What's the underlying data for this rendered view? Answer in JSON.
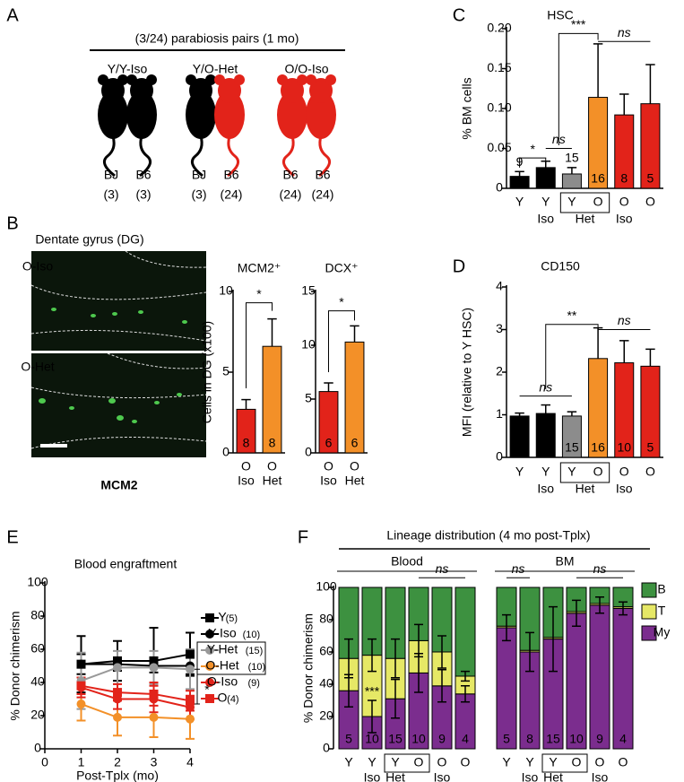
{
  "parabiosis": {
    "label": "A",
    "title": "(3/24) parabiosis pairs (1 mo)",
    "pairs": [
      {
        "name": "Y/Y-Iso",
        "mice": [
          {
            "strain": "BJ",
            "age": "(3)",
            "color": "#000000"
          },
          {
            "strain": "B6",
            "age": "(3)",
            "color": "#000000"
          }
        ]
      },
      {
        "name": "Y/O-Het",
        "mice": [
          {
            "strain": "BJ",
            "age": "(3)",
            "color": "#000000"
          },
          {
            "strain": "B6",
            "age": "(24)",
            "color": "#e2231a"
          }
        ]
      },
      {
        "name": "O/O-Iso",
        "mice": [
          {
            "strain": "B6",
            "age": "(24)",
            "color": "#e2231a"
          },
          {
            "strain": "B6",
            "age": "(24)",
            "color": "#e2231a"
          }
        ]
      }
    ]
  },
  "histology": {
    "label": "B",
    "title": "Dentate gyrus (DG)",
    "images": [
      "O-Iso",
      "O-Het"
    ],
    "stain": "MCM2"
  },
  "chart_data": [
    {
      "type": "bar",
      "title": "MCM2⁺",
      "ylabel": "Cells in DG (x100)",
      "categories": [
        "O",
        "O"
      ],
      "subcategories": [
        "Iso",
        "Het"
      ],
      "values": [
        2.7,
        6.6
      ],
      "errors": [
        0.6,
        1.7
      ],
      "n": [
        8,
        8
      ],
      "colors": [
        "#e2231a",
        "#f39028"
      ],
      "ylim": [
        0,
        10
      ],
      "yticks": [
        0,
        5,
        10
      ],
      "annotations": [
        "*"
      ]
    },
    {
      "type": "bar",
      "title": "DCX⁺",
      "categories": [
        "O",
        "O"
      ],
      "subcategories": [
        "Iso",
        "Het"
      ],
      "values": [
        5.7,
        10.3
      ],
      "errors": [
        0.8,
        1.5
      ],
      "n": [
        6,
        6
      ],
      "colors": [
        "#e2231a",
        "#f39028"
      ],
      "ylim": [
        0,
        15
      ],
      "yticks": [
        0,
        5,
        10,
        15
      ],
      "annotations": [
        "*"
      ]
    },
    {
      "type": "bar",
      "label": "C",
      "title": "HSC",
      "ylabel": "% BM cells",
      "categories": [
        "Y",
        "Y",
        "Y",
        "O",
        "O",
        "O"
      ],
      "subcategories": [
        null,
        "Iso",
        "Het",
        null,
        "Iso",
        null
      ],
      "values": [
        0.015,
        0.026,
        0.018,
        0.114,
        0.092,
        0.106
      ],
      "errors": [
        0.006,
        0.008,
        0.008,
        0.067,
        0.026,
        0.049
      ],
      "n": [
        9,
        20,
        15,
        16,
        8,
        5
      ],
      "colors": [
        "#000000",
        "#000000",
        "#8c8c8c",
        "#f39028",
        "#e2231a",
        "#e2231a"
      ],
      "ylim": [
        0,
        0.2
      ],
      "yticks": [
        0,
        0.05,
        {
          "value": 0.1,
          "label": "0.10"
        },
        0.15,
        {
          "value": 0.2,
          "label": "0.20"
        }
      ],
      "annotations": [
        "*",
        "ns",
        "***",
        "ns"
      ]
    },
    {
      "type": "bar",
      "label": "D",
      "title": "CD150",
      "ylabel": "MFI (relative to Y HSC)",
      "categories": [
        "Y",
        "Y",
        "Y",
        "O",
        "O",
        "O"
      ],
      "subcategories": [
        null,
        "Iso",
        "Het",
        null,
        "Iso",
        null
      ],
      "values": [
        0.97,
        1.03,
        0.97,
        2.32,
        2.22,
        2.14
      ],
      "errors": [
        0.07,
        0.2,
        0.1,
        0.72,
        0.52,
        0.4
      ],
      "n": [
        9,
        20,
        15,
        16,
        10,
        5
      ],
      "colors": [
        "#000000",
        "#000000",
        "#8c8c8c",
        "#f39028",
        "#e2231a",
        "#e2231a"
      ],
      "ylim": [
        0,
        4
      ],
      "yticks": [
        0,
        1,
        2,
        3,
        4
      ],
      "annotations": [
        "ns",
        "**",
        "ns"
      ]
    },
    {
      "type": "line",
      "label": "E",
      "title": "Blood engraftment",
      "ylabel": "% Donor chimerism",
      "xlabel": "Post-Tplx (mo)",
      "x": [
        1,
        2,
        3,
        4
      ],
      "xlim": [
        0,
        4
      ],
      "xticks": [
        0,
        1,
        2,
        3,
        4
      ],
      "ylim": [
        0,
        100
      ],
      "yticks": [
        0,
        20,
        40,
        60,
        80,
        100
      ],
      "series": [
        {
          "name": "Y",
          "n": "(5)",
          "color": "#000000",
          "marker": "square",
          "values": [
            51,
            53,
            53,
            57
          ],
          "errors": [
            17,
            12,
            20,
            13
          ]
        },
        {
          "name": "Y-Iso",
          "n": "(10)",
          "color": "#000000",
          "marker": "circle",
          "values": [
            51,
            51,
            50,
            50
          ],
          "errors": [
            6,
            4,
            4,
            5
          ]
        },
        {
          "name": "Y-Het",
          "n": "(15)",
          "color": "#999999",
          "marker": "circle",
          "values": [
            41,
            49,
            49,
            48
          ],
          "errors": [
            17,
            10,
            10,
            12
          ]
        },
        {
          "name": "O-Het",
          "n": "(10)",
          "color": "#f39028",
          "marker": "circle",
          "values": [
            27,
            19,
            19,
            18
          ],
          "errors": [
            10,
            11,
            12,
            12
          ]
        },
        {
          "name": "O-Iso",
          "n": "(9)",
          "color": "#e2231a",
          "marker": "circle",
          "values": [
            37,
            30,
            30,
            25
          ],
          "errors": [
            6,
            6,
            8,
            7
          ]
        },
        {
          "name": "O",
          "n": "(4)",
          "color": "#e2231a",
          "marker": "square",
          "values": [
            38,
            34,
            33,
            29
          ],
          "errors": [
            5,
            5,
            7,
            6
          ]
        }
      ],
      "annotations": [
        "*"
      ]
    },
    {
      "type": "stacked_bar",
      "label": "F",
      "title": "Lineage distribution (4 mo post-Tplx)",
      "ylabel": "% Donor chimerism",
      "groups": [
        "Blood",
        "BM"
      ],
      "categories": [
        "Y",
        "Y",
        "Y",
        "O",
        "O",
        "O",
        "Y",
        "Y",
        "Y",
        "O",
        "O",
        "O"
      ],
      "subcategories": [
        null,
        "Iso",
        "Het",
        null,
        "Iso",
        null,
        null,
        "Iso",
        "Het",
        null,
        "Iso",
        null
      ],
      "n": [
        5,
        10,
        15,
        10,
        9,
        4,
        5,
        8,
        15,
        10,
        9,
        4
      ],
      "ylim": [
        0,
        100
      ],
      "yticks": [
        0,
        20,
        40,
        60,
        80,
        100
      ],
      "series": [
        {
          "name": "B",
          "color": "#3d9140",
          "values": [
            44,
            42,
            44,
            33,
            40,
            55,
            24,
            39,
            31,
            15,
            10,
            12
          ]
        },
        {
          "name": "T",
          "color": "#e6e866",
          "values": [
            20,
            38,
            25,
            20,
            21,
            11,
            1,
            1,
            1,
            1,
            1,
            1
          ],
          "errors": [
            12,
            10,
            12,
            10,
            10,
            3,
            null,
            null,
            null,
            null,
            null,
            null
          ]
        },
        {
          "name": "My",
          "color": "#7b2d8e",
          "values": [
            36,
            20,
            31,
            47,
            39,
            34,
            75,
            60,
            68,
            84,
            89,
            87
          ],
          "errors": [
            10,
            10,
            12,
            12,
            10,
            5,
            8,
            12,
            20,
            8,
            5,
            4
          ]
        }
      ],
      "annotations": [
        "***",
        "ns",
        "ns",
        "ns"
      ]
    }
  ]
}
